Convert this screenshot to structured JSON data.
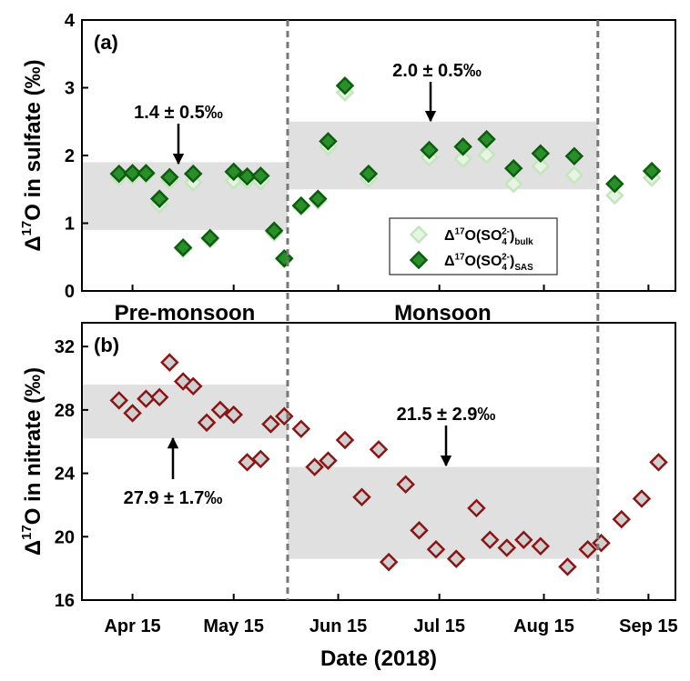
{
  "periods": {
    "names": [
      "Pre-monsoon",
      "Monsoon"
    ],
    "boundaries": [
      "2018-05-31",
      "2018-08-31"
    ]
  },
  "chart_data": [
    {
      "type": "scatter",
      "panel_label": "(a)",
      "ylabel_parts": [
        {
          "text": "Δ",
          "pos": "normal"
        },
        {
          "text": "17",
          "pos": "sup"
        },
        {
          "text": "O in sulfate (‰)",
          "pos": "normal"
        }
      ],
      "xlim": [
        "2018-03-31",
        "2018-09-23"
      ],
      "ylim": [
        0,
        4
      ],
      "yticks": [
        0,
        1,
        2,
        3,
        4
      ],
      "x": [
        "2018-04-11",
        "2018-04-15",
        "2018-04-19",
        "2018-04-23",
        "2018-04-26",
        "2018-04-30",
        "2018-05-03",
        "2018-05-08",
        "2018-05-15",
        "2018-05-19",
        "2018-05-23",
        "2018-05-27",
        "2018-05-30",
        "2018-06-04",
        "2018-06-09",
        "2018-06-12",
        "2018-06-17",
        "2018-06-24",
        "2018-07-12",
        "2018-07-22",
        "2018-07-29",
        "2018-08-06",
        "2018-08-14",
        "2018-08-24",
        "2018-09-05",
        "2018-09-16"
      ],
      "series": [
        {
          "name_parts": [
            {
              "text": "Δ",
              "pos": "normal"
            },
            {
              "text": "17",
              "pos": "sup"
            },
            {
              "text": "O(SO",
              "pos": "normal"
            },
            {
              "text": "4",
              "pos": "sub"
            },
            {
              "text": "2-",
              "pos": "stack"
            },
            {
              "text": ")",
              "pos": "normal"
            },
            {
              "text": "bulk",
              "pos": "sub"
            }
          ],
          "color": "#c4e6bd",
          "fill": "#e6f5e2",
          "values": [
            1.68,
            1.7,
            1.72,
            1.28,
            1.63,
            0.62,
            1.6,
            0.76,
            1.63,
            1.63,
            1.62,
            0.86,
            0.47,
            1.24,
            1.33,
            2.13,
            2.93,
            1.66,
            1.97,
            1.95,
            2.01,
            1.58,
            1.84,
            1.71,
            1.41,
            1.67
          ]
        },
        {
          "name_parts": [
            {
              "text": "Δ",
              "pos": "normal"
            },
            {
              "text": "17",
              "pos": "sup"
            },
            {
              "text": "O(SO",
              "pos": "normal"
            },
            {
              "text": "4",
              "pos": "sub"
            },
            {
              "text": "2-",
              "pos": "stack"
            },
            {
              "text": ")",
              "pos": "normal"
            },
            {
              "text": "SAS",
              "pos": "sub"
            }
          ],
          "color": "#0b5e0b",
          "fill": "#2a8f2a",
          "values": [
            1.73,
            1.74,
            1.74,
            1.36,
            1.68,
            0.64,
            1.73,
            0.78,
            1.76,
            1.69,
            1.7,
            0.89,
            0.48,
            1.26,
            1.36,
            2.21,
            3.03,
            1.73,
            2.08,
            2.13,
            2.24,
            1.81,
            2.03,
            1.99,
            1.58,
            1.77
          ]
        }
      ],
      "bands": [
        {
          "mean": 1.4,
          "sd": 0.5,
          "label": "1.4 ± 0.5‰"
        },
        {
          "mean": 2.0,
          "sd": 0.5,
          "label": "2.0 ± 0.5‰"
        }
      ]
    },
    {
      "type": "scatter",
      "panel_label": "(b)",
      "ylabel_parts": [
        {
          "text": "Δ",
          "pos": "normal"
        },
        {
          "text": "17",
          "pos": "sup"
        },
        {
          "text": "O in nitrate (‰)",
          "pos": "normal"
        }
      ],
      "xlabel": "Date (2018)",
      "xlim": [
        "2018-03-31",
        "2018-09-23"
      ],
      "xticks": [
        {
          "value": "2018-04-15",
          "label": "Apr 15"
        },
        {
          "value": "2018-05-15",
          "label": "May 15"
        },
        {
          "value": "2018-06-15",
          "label": "Jun 15"
        },
        {
          "value": "2018-07-15",
          "label": "Jul 15"
        },
        {
          "value": "2018-08-15",
          "label": "Aug 15"
        },
        {
          "value": "2018-09-15",
          "label": "Sep 15"
        }
      ],
      "ylim": [
        16,
        33.5
      ],
      "yticks": [
        16,
        20,
        24,
        28,
        32
      ],
      "x": [
        "2018-04-11",
        "2018-04-15",
        "2018-04-19",
        "2018-04-23",
        "2018-04-26",
        "2018-04-30",
        "2018-05-03",
        "2018-05-07",
        "2018-05-11",
        "2018-05-15",
        "2018-05-19",
        "2018-05-23",
        "2018-05-26",
        "2018-05-30",
        "2018-06-04",
        "2018-06-08",
        "2018-06-12",
        "2018-06-17",
        "2018-06-22",
        "2018-06-27",
        "2018-06-30",
        "2018-07-05",
        "2018-07-09",
        "2018-07-14",
        "2018-07-20",
        "2018-07-26",
        "2018-07-30",
        "2018-08-04",
        "2018-08-09",
        "2018-08-14",
        "2018-08-22",
        "2018-08-28",
        "2018-09-01",
        "2018-09-07",
        "2018-09-13",
        "2018-09-18"
      ],
      "series": [
        {
          "color": "#8b1414",
          "fill": "#cfcfcf",
          "values": [
            28.6,
            27.8,
            28.7,
            28.8,
            31.0,
            29.8,
            29.5,
            27.2,
            28.0,
            27.7,
            24.7,
            24.9,
            27.1,
            27.6,
            26.8,
            24.4,
            24.8,
            26.1,
            22.5,
            25.5,
            18.4,
            23.3,
            20.4,
            19.2,
            18.6,
            21.8,
            19.8,
            19.3,
            19.8,
            19.4,
            18.1,
            19.2,
            19.6,
            21.1,
            22.4,
            24.7
          ]
        }
      ],
      "bands": [
        {
          "mean": 27.9,
          "sd": 1.7,
          "label": "27.9 ± 1.7‰"
        },
        {
          "mean": 21.5,
          "sd": 2.9,
          "label": "21.5 ± 2.9‰"
        }
      ]
    }
  ]
}
